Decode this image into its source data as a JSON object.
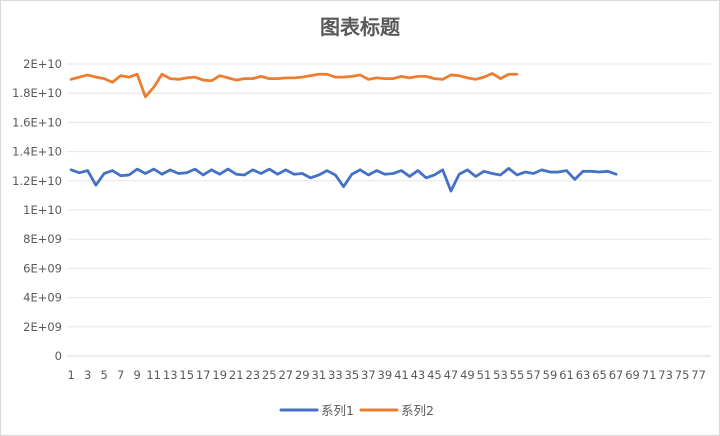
{
  "chart_data": {
    "type": "line",
    "title": "图表标题",
    "xlabel": "",
    "ylabel": "",
    "ylim": [
      0,
      20000000000
    ],
    "y_ticks": [
      {
        "value": 0,
        "label": "0"
      },
      {
        "value": 2000000000,
        "label": "2E+09"
      },
      {
        "value": 4000000000,
        "label": "4E+09"
      },
      {
        "value": 6000000000,
        "label": "6E+09"
      },
      {
        "value": 8000000000,
        "label": "8E+09"
      },
      {
        "value": 10000000000,
        "label": "1E+10"
      },
      {
        "value": 12000000000,
        "label": "1.2E+10"
      },
      {
        "value": 14000000000,
        "label": "1.4E+10"
      },
      {
        "value": 16000000000,
        "label": "1.6E+10"
      },
      {
        "value": 18000000000,
        "label": "1.8E+10"
      },
      {
        "value": 20000000000,
        "label": "2E+10"
      }
    ],
    "x_categories_count": 78,
    "x_tick_labels": [
      "1",
      "3",
      "5",
      "7",
      "9",
      "11",
      "13",
      "15",
      "17",
      "19",
      "21",
      "23",
      "25",
      "27",
      "29",
      "31",
      "33",
      "35",
      "37",
      "39",
      "41",
      "43",
      "45",
      "47",
      "49",
      "51",
      "53",
      "55",
      "57",
      "59",
      "61",
      "63",
      "65",
      "67",
      "69",
      "71",
      "73",
      "75",
      "77"
    ],
    "grid": "horizontal",
    "legend_position": "bottom",
    "series": [
      {
        "name": "系列1",
        "color": "#4472C4",
        "values": [
          12750000000.0,
          12550000000.0,
          12700000000.0,
          11700000000.0,
          12500000000.0,
          12700000000.0,
          12350000000.0,
          12400000000.0,
          12800000000.0,
          12500000000.0,
          12800000000.0,
          12450000000.0,
          12750000000.0,
          12500000000.0,
          12550000000.0,
          12800000000.0,
          12400000000.0,
          12750000000.0,
          12450000000.0,
          12800000000.0,
          12450000000.0,
          12400000000.0,
          12750000000.0,
          12500000000.0,
          12800000000.0,
          12450000000.0,
          12750000000.0,
          12450000000.0,
          12500000000.0,
          12200000000.0,
          12400000000.0,
          12700000000.0,
          12400000000.0,
          11600000000.0,
          12450000000.0,
          12750000000.0,
          12400000000.0,
          12700000000.0,
          12450000000.0,
          12500000000.0,
          12700000000.0,
          12300000000.0,
          12700000000.0,
          12200000000.0,
          12400000000.0,
          12750000000.0,
          11300000000.0,
          12450000000.0,
          12750000000.0,
          12300000000.0,
          12650000000.0,
          12500000000.0,
          12400000000.0,
          12850000000.0,
          12400000000.0,
          12600000000.0,
          12500000000.0,
          12750000000.0,
          12600000000.0,
          12600000000.0,
          12700000000.0,
          12100000000.0,
          12650000000.0,
          12650000000.0,
          12600000000.0,
          12650000000.0,
          12450000000.0
        ]
      },
      {
        "name": "系列2",
        "color": "#ED7D31",
        "values": [
          18950000000.0,
          19100000000.0,
          19250000000.0,
          19100000000.0,
          19000000000.0,
          18750000000.0,
          19200000000.0,
          19100000000.0,
          19300000000.0,
          17750000000.0,
          18400000000.0,
          19300000000.0,
          19000000000.0,
          18950000000.0,
          19050000000.0,
          19100000000.0,
          18900000000.0,
          18850000000.0,
          19200000000.0,
          19050000000.0,
          18900000000.0,
          19000000000.0,
          19000000000.0,
          19150000000.0,
          19000000000.0,
          19000000000.0,
          19050000000.0,
          19050000000.0,
          19100000000.0,
          19200000000.0,
          19300000000.0,
          19300000000.0,
          19100000000.0,
          19100000000.0,
          19150000000.0,
          19250000000.0,
          18950000000.0,
          19050000000.0,
          19000000000.0,
          19000000000.0,
          19150000000.0,
          19050000000.0,
          19150000000.0,
          19150000000.0,
          19000000000.0,
          18950000000.0,
          19250000000.0,
          19200000000.0,
          19050000000.0,
          18950000000.0,
          19100000000.0,
          19350000000.0,
          19000000000.0,
          19300000000.0,
          19300000000.0
        ]
      }
    ]
  }
}
